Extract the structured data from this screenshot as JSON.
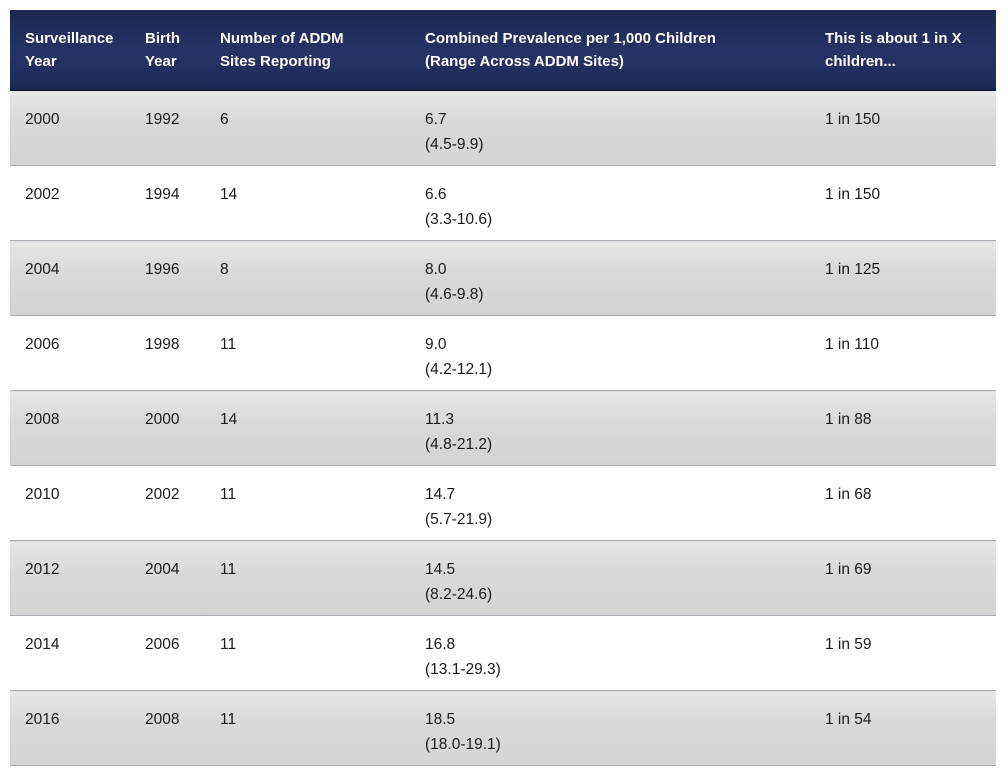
{
  "chart_data": {
    "type": "table",
    "columns": [
      {
        "line1": "Surveillance",
        "line2": "Year"
      },
      {
        "line1": "Birth",
        "line2": "Year"
      },
      {
        "line1": "Number of ADDM",
        "line2": "Sites Reporting"
      },
      {
        "line1": "Combined Prevalence per 1,000 Children",
        "line2": "(Range Across ADDM Sites)"
      },
      {
        "line1": "This is about 1 in X",
        "line2": "children..."
      }
    ],
    "rows": [
      {
        "surveillance_year": "2000",
        "birth_year": "1992",
        "sites_reporting": "6",
        "prevalence": "6.7",
        "range": "(4.5-9.9)",
        "one_in_x": "1 in 150"
      },
      {
        "surveillance_year": "2002",
        "birth_year": "1994",
        "sites_reporting": "14",
        "prevalence": "6.6",
        "range": "(3.3-10.6)",
        "one_in_x": "1 in 150"
      },
      {
        "surveillance_year": "2004",
        "birth_year": "1996",
        "sites_reporting": "8",
        "prevalence": "8.0",
        "range": "(4.6-9.8)",
        "one_in_x": "1 in 125"
      },
      {
        "surveillance_year": "2006",
        "birth_year": "1998",
        "sites_reporting": "11",
        "prevalence": "9.0",
        "range": "(4.2-12.1)",
        "one_in_x": "1 in 110"
      },
      {
        "surveillance_year": "2008",
        "birth_year": "2000",
        "sites_reporting": "14",
        "prevalence": "11.3",
        "range": "(4.8-21.2)",
        "one_in_x": "1 in 88"
      },
      {
        "surveillance_year": "2010",
        "birth_year": "2002",
        "sites_reporting": "11",
        "prevalence": "14.7",
        "range": "(5.7-21.9)",
        "one_in_x": "1 in 68"
      },
      {
        "surveillance_year": "2012",
        "birth_year": "2004",
        "sites_reporting": "11",
        "prevalence": "14.5",
        "range": "(8.2-24.6)",
        "one_in_x": "1 in 69"
      },
      {
        "surveillance_year": "2014",
        "birth_year": "2006",
        "sites_reporting": "11",
        "prevalence": "16.8",
        "range": "(13.1-29.3)",
        "one_in_x": "1 in 59"
      },
      {
        "surveillance_year": "2016",
        "birth_year": "2008",
        "sites_reporting": "11",
        "prevalence": "18.5",
        "range": "(18.0-19.1)",
        "one_in_x": "1 in 54"
      }
    ],
    "colors": {
      "header_background": "#22305e",
      "header_text": "#ffffff",
      "row_alt_background": "#d6d6d6",
      "row_background": "#ffffff",
      "row_border": "#a9adb3",
      "cell_text": "#1a1a1a"
    },
    "layout": {
      "grid": "alternating row stripes, gray odd rows",
      "legend": "none",
      "title": "none visible"
    }
  }
}
